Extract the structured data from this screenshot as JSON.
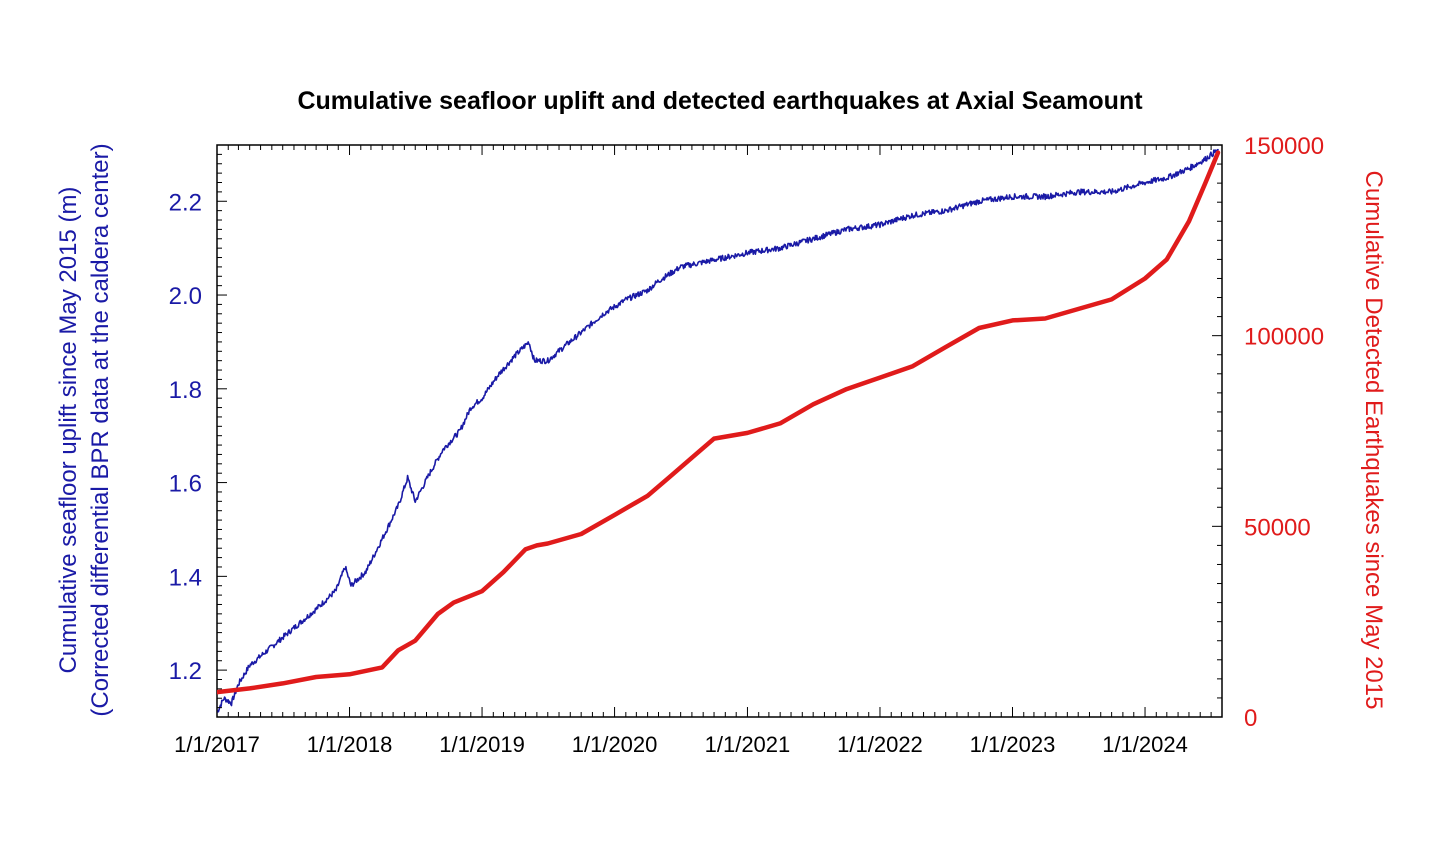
{
  "chart_data": {
    "type": "line",
    "title": "Cumulative seafloor uplift and detected earthquakes at Axial Seamount",
    "x_ticks": [
      "1/1/2017",
      "1/1/2018",
      "1/1/2019",
      "1/1/2020",
      "1/1/2021",
      "1/1/2022",
      "1/1/2023",
      "1/1/2024"
    ],
    "x_range": [
      "2017-01-01",
      "2024-07-31"
    ],
    "left_axis": {
      "label_line1": "Cumulative seafloor uplift since May 2015 (m)",
      "label_line2": "(Corrected differential BPR data at the caldera center)",
      "range": [
        1.1,
        2.32
      ],
      "ticks": [
        "1.2",
        "1.4",
        "1.6",
        "1.8",
        "2.0",
        "2.2"
      ],
      "color": "#1a1aa6"
    },
    "right_axis": {
      "label": "Cumulative Detected Earthquakes since May 2015",
      "range": [
        0,
        150000
      ],
      "ticks": [
        "0",
        "50000",
        "100000",
        "150000"
      ],
      "color": "#e01b1b"
    },
    "series": [
      {
        "axis": "left",
        "color": "#1a1aa6",
        "points": [
          [
            "2017-01-01",
            1.11
          ],
          [
            "2017-01-20",
            1.14
          ],
          [
            "2017-02-10",
            1.13
          ],
          [
            "2017-03-01",
            1.17
          ],
          [
            "2017-04-01",
            1.21
          ],
          [
            "2017-06-01",
            1.25
          ],
          [
            "2017-08-01",
            1.29
          ],
          [
            "2017-10-01",
            1.33
          ],
          [
            "2017-11-25",
            1.37
          ],
          [
            "2017-12-20",
            1.42
          ],
          [
            "2018-01-05",
            1.38
          ],
          [
            "2018-02-15",
            1.41
          ],
          [
            "2018-04-01",
            1.48
          ],
          [
            "2018-05-15",
            1.55
          ],
          [
            "2018-06-10",
            1.61
          ],
          [
            "2018-07-01",
            1.56
          ],
          [
            "2018-08-10",
            1.62
          ],
          [
            "2018-09-15",
            1.67
          ],
          [
            "2018-11-01",
            1.71
          ],
          [
            "2018-12-01",
            1.76
          ],
          [
            "2019-01-01",
            1.78
          ],
          [
            "2019-02-15",
            1.83
          ],
          [
            "2019-04-01",
            1.87
          ],
          [
            "2019-05-10",
            1.9
          ],
          [
            "2019-05-25",
            1.86
          ],
          [
            "2019-07-01",
            1.86
          ],
          [
            "2019-08-15",
            1.89
          ],
          [
            "2019-10-01",
            1.92
          ],
          [
            "2019-12-01",
            1.96
          ],
          [
            "2020-02-01",
            1.99
          ],
          [
            "2020-04-01",
            2.01
          ],
          [
            "2020-05-01",
            2.03
          ],
          [
            "2020-07-01",
            2.06
          ],
          [
            "2020-09-01",
            2.07
          ],
          [
            "2020-11-01",
            2.08
          ],
          [
            "2021-01-01",
            2.09
          ],
          [
            "2021-04-01",
            2.1
          ],
          [
            "2021-07-01",
            2.12
          ],
          [
            "2021-10-01",
            2.14
          ],
          [
            "2022-01-01",
            2.15
          ],
          [
            "2022-04-01",
            2.17
          ],
          [
            "2022-07-01",
            2.18
          ],
          [
            "2022-10-01",
            2.2
          ],
          [
            "2023-01-01",
            2.21
          ],
          [
            "2023-04-01",
            2.21
          ],
          [
            "2023-07-01",
            2.22
          ],
          [
            "2023-10-01",
            2.22
          ],
          [
            "2024-01-01",
            2.24
          ],
          [
            "2024-03-01",
            2.25
          ],
          [
            "2024-05-01",
            2.27
          ],
          [
            "2024-06-15",
            2.29
          ],
          [
            "2024-07-20",
            2.31
          ]
        ]
      },
      {
        "axis": "right",
        "color": "#e01b1b",
        "points": [
          [
            "2017-01-01",
            6500
          ],
          [
            "2017-04-01",
            7500
          ],
          [
            "2017-07-01",
            8800
          ],
          [
            "2017-10-01",
            10500
          ],
          [
            "2018-01-01",
            11200
          ],
          [
            "2018-04-01",
            13000
          ],
          [
            "2018-05-15",
            17500
          ],
          [
            "2018-07-01",
            20000
          ],
          [
            "2018-09-01",
            27000
          ],
          [
            "2018-10-15",
            30000
          ],
          [
            "2019-01-01",
            33000
          ],
          [
            "2019-03-01",
            38000
          ],
          [
            "2019-05-01",
            44000
          ],
          [
            "2019-06-01",
            45000
          ],
          [
            "2019-07-01",
            45500
          ],
          [
            "2019-10-01",
            48000
          ],
          [
            "2020-01-01",
            53000
          ],
          [
            "2020-04-01",
            58000
          ],
          [
            "2020-06-01",
            63000
          ],
          [
            "2020-08-01",
            68000
          ],
          [
            "2020-10-01",
            73000
          ],
          [
            "2021-01-01",
            74500
          ],
          [
            "2021-04-01",
            77000
          ],
          [
            "2021-07-01",
            82000
          ],
          [
            "2021-10-01",
            86000
          ],
          [
            "2022-01-01",
            89000
          ],
          [
            "2022-04-01",
            92000
          ],
          [
            "2022-07-01",
            97000
          ],
          [
            "2022-10-01",
            102000
          ],
          [
            "2023-01-01",
            104000
          ],
          [
            "2023-04-01",
            104500
          ],
          [
            "2023-07-01",
            107000
          ],
          [
            "2023-10-01",
            109500
          ],
          [
            "2024-01-01",
            115000
          ],
          [
            "2024-03-01",
            120000
          ],
          [
            "2024-05-01",
            130000
          ],
          [
            "2024-06-15",
            140000
          ],
          [
            "2024-07-20",
            148000
          ]
        ]
      }
    ],
    "grid": false
  }
}
